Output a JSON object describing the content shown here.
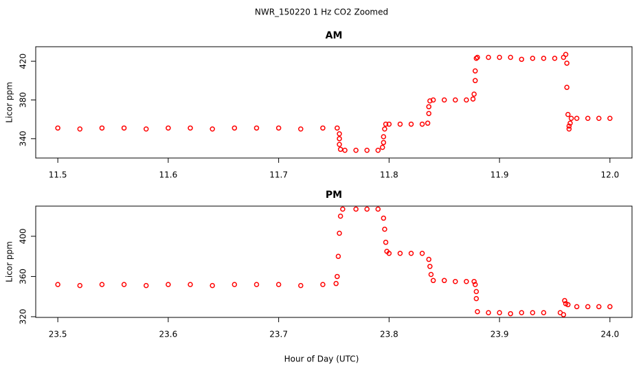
{
  "figure": {
    "title": "NWR_150220  1 Hz CO2 Zoomed",
    "x_label": "Hour of Day (UTC)"
  },
  "chart_data": [
    {
      "type": "scatter",
      "title": "AM",
      "y_label": "Licor ppm",
      "color": "#ff0000",
      "xlim": [
        11.48,
        12.02
      ],
      "ylim": [
        320,
        435
      ],
      "xticks": [
        11.5,
        11.6,
        11.7,
        11.8,
        11.9,
        {
          "value": 12,
          "label": "12.0"
        }
      ],
      "yticks": [
        340,
        380,
        420
      ],
      "x": [
        11.5,
        11.52,
        11.54,
        11.56,
        11.58,
        11.6,
        11.62,
        11.64,
        11.66,
        11.68,
        11.7,
        11.72,
        11.74,
        11.753,
        11.755,
        11.755,
        11.755,
        11.756,
        11.76,
        11.77,
        11.78,
        11.79,
        11.794,
        11.795,
        11.795,
        11.796,
        11.797,
        11.8,
        11.81,
        11.82,
        11.83,
        11.835,
        11.836,
        11.836,
        11.837,
        11.84,
        11.85,
        11.86,
        11.87,
        11.876,
        11.877,
        11.878,
        11.878,
        11.879,
        11.88,
        11.89,
        11.9,
        11.91,
        11.92,
        11.93,
        11.94,
        11.95,
        11.958,
        11.96,
        11.961,
        11.961,
        11.962,
        11.963,
        11.963,
        11.964,
        11.965,
        11.97,
        11.98,
        11.99,
        12.0
      ],
      "values": [
        351,
        350,
        351,
        351,
        350,
        351,
        351,
        350,
        351,
        351,
        351,
        350,
        351,
        351,
        345,
        340,
        334,
        329,
        328,
        328,
        328,
        328,
        331,
        336,
        342,
        350,
        355,
        355,
        355,
        355,
        355,
        356,
        366,
        373,
        379,
        380,
        380,
        380,
        380,
        381,
        386,
        400,
        410,
        423,
        424,
        424,
        424,
        424,
        422,
        423,
        423,
        423,
        424,
        427,
        418,
        393,
        365,
        353,
        350,
        356,
        361,
        361,
        361,
        361,
        361
      ]
    },
    {
      "type": "scatter",
      "title": "PM",
      "y_label": "Licor ppm",
      "color": "#ff0000",
      "xlim": [
        23.48,
        24.02
      ],
      "ylim": [
        319.3,
        430
      ],
      "xticks": [
        23.5,
        23.6,
        23.7,
        23.8,
        23.9,
        {
          "value": 24,
          "label": "24.0"
        }
      ],
      "yticks": [
        320,
        360,
        400
      ],
      "x": [
        23.5,
        23.52,
        23.54,
        23.56,
        23.58,
        23.6,
        23.62,
        23.64,
        23.66,
        23.68,
        23.7,
        23.72,
        23.74,
        23.752,
        23.753,
        23.754,
        23.755,
        23.756,
        23.758,
        23.77,
        23.78,
        23.79,
        23.795,
        23.796,
        23.797,
        23.798,
        23.8,
        23.81,
        23.82,
        23.83,
        23.836,
        23.837,
        23.838,
        23.84,
        23.85,
        23.86,
        23.87,
        23.877,
        23.878,
        23.879,
        23.879,
        23.88,
        23.89,
        23.9,
        23.91,
        23.92,
        23.93,
        23.94,
        23.955,
        23.958,
        23.959,
        23.96,
        23.962,
        23.97,
        23.98,
        23.99,
        24.0
      ],
      "values": [
        352,
        351,
        352,
        352,
        351,
        352,
        352,
        351,
        352,
        352,
        352,
        351,
        352,
        353,
        360,
        380,
        403,
        420,
        427,
        427,
        427,
        427,
        418,
        407,
        394,
        385,
        383,
        383,
        383,
        383,
        377,
        370,
        362,
        356,
        356,
        355,
        355,
        355,
        352,
        345,
        338,
        325,
        324,
        324,
        323,
        324,
        324,
        324,
        324,
        322,
        336,
        333,
        332,
        330,
        330,
        330,
        330
      ]
    }
  ]
}
